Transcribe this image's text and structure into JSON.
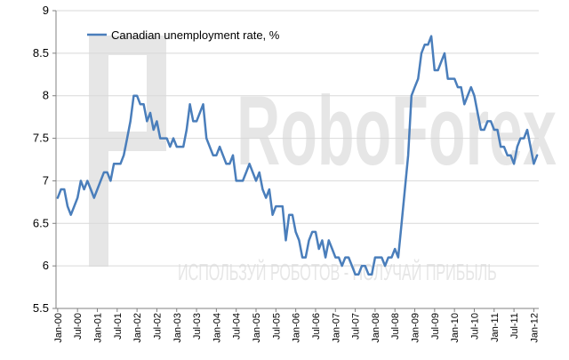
{
  "watermark": {
    "brand": "RoboForex",
    "slogan": "ИСПОЛЬЗУЙ РОБОТОВ - ПОЛУЧАЙ ПРИБЫЛЬ"
  },
  "chart_data": {
    "type": "line",
    "title": "",
    "xlabel": "",
    "ylabel": "",
    "ylim": [
      5.5,
      9
    ],
    "yticks": [
      5.5,
      6,
      6.5,
      7,
      7.5,
      8,
      8.5,
      9
    ],
    "xtick_labels": [
      "Jan-00",
      "Jul-00",
      "Jan-01",
      "Jul-01",
      "Jan-02",
      "Jul-02",
      "Jan-03",
      "Jul-03",
      "Jan-04",
      "Jul-04",
      "Jan-05",
      "Jul-05",
      "Jan-06",
      "Jul-06",
      "Jan-07",
      "Jul-07",
      "Jan-08",
      "Jul-08",
      "Jan-09",
      "Jul-09",
      "Jan-10",
      "Jul-10",
      "Jan-11",
      "Jul-11",
      "Jan-12"
    ],
    "grid": true,
    "legend_position": "top-left",
    "colors": {
      "line": "#4a7ebb",
      "grid": "#d9d9d9",
      "axis": "#808080"
    },
    "series": [
      {
        "name": "Canadian unemployment rate, %",
        "values": [
          6.8,
          6.9,
          6.9,
          6.7,
          6.6,
          6.7,
          6.8,
          7.0,
          6.9,
          7.0,
          6.9,
          6.8,
          6.9,
          7.0,
          7.1,
          7.1,
          7.0,
          7.2,
          7.2,
          7.2,
          7.3,
          7.5,
          7.7,
          8.0,
          8.0,
          7.9,
          7.9,
          7.7,
          7.8,
          7.6,
          7.7,
          7.5,
          7.5,
          7.5,
          7.4,
          7.5,
          7.4,
          7.4,
          7.4,
          7.6,
          7.9,
          7.7,
          7.7,
          7.8,
          7.9,
          7.5,
          7.4,
          7.3,
          7.3,
          7.4,
          7.3,
          7.2,
          7.2,
          7.3,
          7.0,
          7.0,
          7.0,
          7.1,
          7.2,
          7.1,
          7.0,
          7.1,
          6.9,
          6.8,
          6.9,
          6.6,
          6.7,
          6.7,
          6.7,
          6.3,
          6.6,
          6.6,
          6.4,
          6.3,
          6.1,
          6.1,
          6.3,
          6.4,
          6.4,
          6.2,
          6.3,
          6.1,
          6.3,
          6.2,
          6.1,
          6.1,
          6.0,
          6.1,
          6.1,
          6.0,
          5.9,
          5.9,
          6.0,
          6.0,
          5.9,
          5.9,
          6.1,
          6.1,
          6.1,
          6.0,
          6.1,
          6.1,
          6.2,
          6.1,
          6.5,
          6.9,
          7.3,
          8.0,
          8.1,
          8.2,
          8.5,
          8.6,
          8.6,
          8.7,
          8.3,
          8.3,
          8.4,
          8.5,
          8.2,
          8.2,
          8.2,
          8.1,
          8.1,
          7.9,
          8.0,
          8.1,
          8.0,
          7.8,
          7.6,
          7.6,
          7.7,
          7.7,
          7.6,
          7.6,
          7.4,
          7.4,
          7.3,
          7.3,
          7.2,
          7.4,
          7.5,
          7.5,
          7.6,
          7.4,
          7.2,
          7.3
        ]
      }
    ]
  }
}
